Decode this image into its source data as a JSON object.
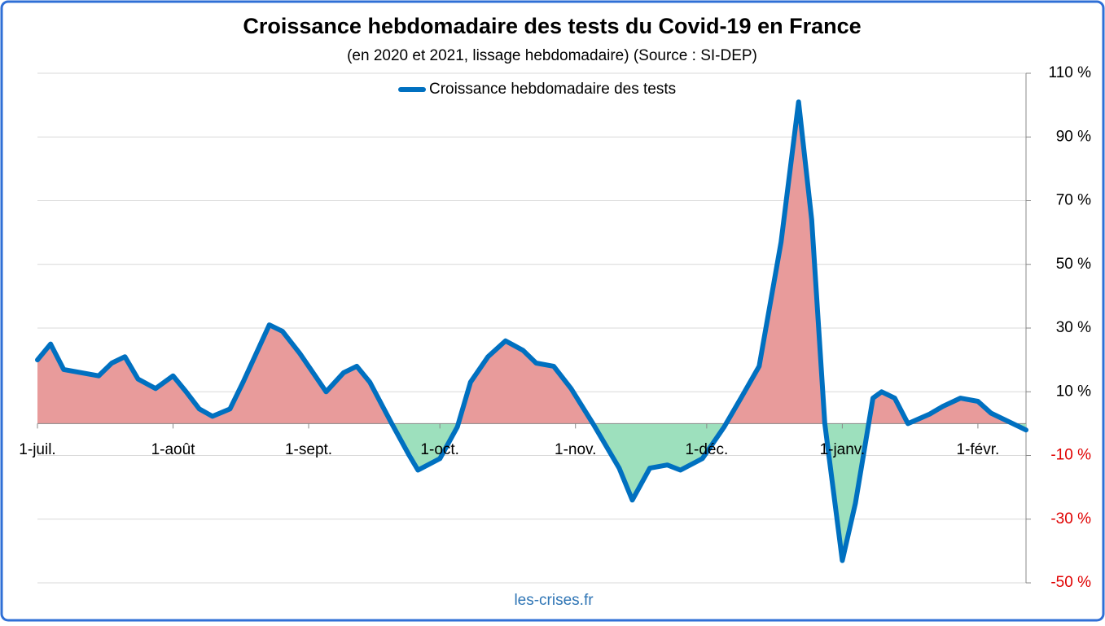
{
  "chart_data": {
    "type": "line",
    "title": "Croissance hebdomadaire des tests du Covid-19 en France",
    "subtitle": "(en 2020 et 2021, lissage hebdomadaire) (Source : SI-DEP)",
    "footer": "les-crises.fr",
    "x": [
      0,
      3,
      6,
      10,
      14,
      17,
      20,
      23,
      27,
      31,
      34,
      37,
      40,
      44,
      47,
      53,
      56,
      60,
      66,
      70,
      73,
      76,
      81,
      85,
      87,
      92,
      96,
      99,
      103,
      107,
      111,
      114,
      118,
      122,
      127,
      133,
      136,
      140,
      144,
      147,
      152,
      157,
      161,
      165,
      170,
      174,
      177,
      180,
      184,
      187,
      191,
      193,
      196,
      199,
      204,
      207,
      211,
      215,
      218,
      223,
      226
    ],
    "series": [
      {
        "name": "Croissance hebdomadaire des tests",
        "color": "#0070c0",
        "values": [
          20,
          25,
          17,
          16,
          15,
          19,
          21,
          14,
          11,
          15,
          10,
          4.6,
          2.3,
          4.6,
          13,
          31,
          29,
          22,
          10,
          16,
          18,
          13,
          0,
          -10,
          -14.6,
          -11,
          -1,
          13,
          21,
          26,
          23,
          19,
          18,
          11,
          0,
          -14,
          -24,
          -14,
          -13,
          -14.6,
          -11,
          -1,
          8.4,
          18,
          57,
          101,
          64,
          0,
          -43,
          -25,
          8,
          10,
          8,
          0,
          3,
          5.4,
          8,
          7,
          3.3,
          0,
          -2
        ]
      }
    ],
    "xlim": [
      0,
      226
    ],
    "xticks": [
      {
        "value": 0,
        "label": "1-juil."
      },
      {
        "value": 31,
        "label": "1-août"
      },
      {
        "value": 62,
        "label": "1-sept."
      },
      {
        "value": 92,
        "label": "1-oct."
      },
      {
        "value": 123,
        "label": "1-nov."
      },
      {
        "value": 153,
        "label": "1-déc."
      },
      {
        "value": 184,
        "label": "1-janv."
      },
      {
        "value": 215,
        "label": "1-févr."
      }
    ],
    "ylim": [
      -50,
      110
    ],
    "yticks": [
      {
        "value": 110,
        "label": "110 %"
      },
      {
        "value": 90,
        "label": "90 %"
      },
      {
        "value": 70,
        "label": "70 %"
      },
      {
        "value": 50,
        "label": "50 %"
      },
      {
        "value": 30,
        "label": "30 %"
      },
      {
        "value": 10,
        "label": "10 %"
      },
      {
        "value": -10,
        "label": "-10 %"
      },
      {
        "value": -30,
        "label": "-30 %"
      },
      {
        "value": -50,
        "label": "-50 %"
      }
    ],
    "grid": true,
    "legend_position": "top",
    "positive_fill": "#e89b9b",
    "negative_fill": "#9de0bd",
    "negative_tick_color": "#e00000"
  }
}
